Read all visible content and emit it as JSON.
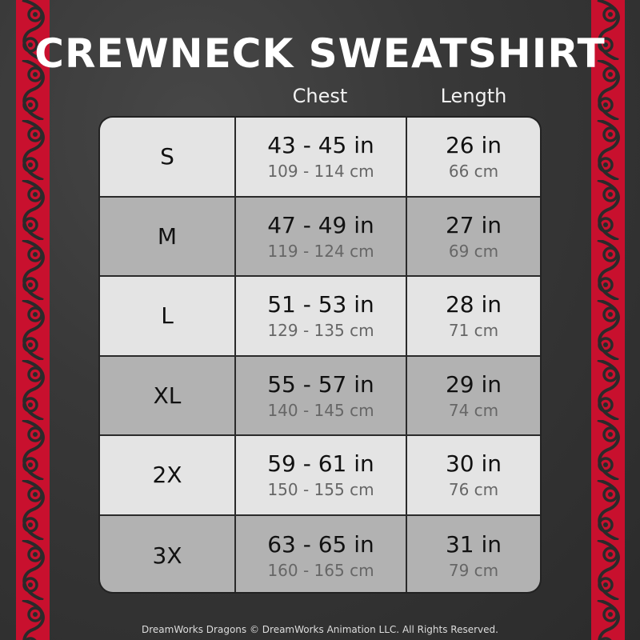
{
  "title": "CREWNECK SWEATSHIRT",
  "headers": {
    "chest": "Chest",
    "length": "Length"
  },
  "rows": [
    {
      "size": "S",
      "chest_in": "43 - 45 in",
      "chest_cm": "109 - 114 cm",
      "length_in": "26 in",
      "length_cm": "66 cm"
    },
    {
      "size": "M",
      "chest_in": "47 - 49 in",
      "chest_cm": "119 - 124 cm",
      "length_in": "27 in",
      "length_cm": "69 cm"
    },
    {
      "size": "L",
      "chest_in": "51 - 53 in",
      "chest_cm": "129 - 135 cm",
      "length_in": "28 in",
      "length_cm": "71 cm"
    },
    {
      "size": "XL",
      "chest_in": "55 - 57 in",
      "chest_cm": "140 - 145 cm",
      "length_in": "29 in",
      "length_cm": "74 cm"
    },
    {
      "size": "2X",
      "chest_in": "59 - 61 in",
      "chest_cm": "150 - 155 cm",
      "length_in": "30 in",
      "length_cm": "76 cm"
    },
    {
      "size": "3X",
      "chest_in": "63 - 65 in",
      "chest_cm": "160 - 165 cm",
      "length_in": "31 in",
      "length_cm": "79 cm"
    }
  ],
  "footer": "DreamWorks Dragons © DreamWorks Animation LLC. All Rights Reserved.",
  "colors": {
    "border_red": "#c8102e",
    "background": "#353535",
    "row_light": "#e4e4e4",
    "row_dark": "#b2b2b2"
  }
}
